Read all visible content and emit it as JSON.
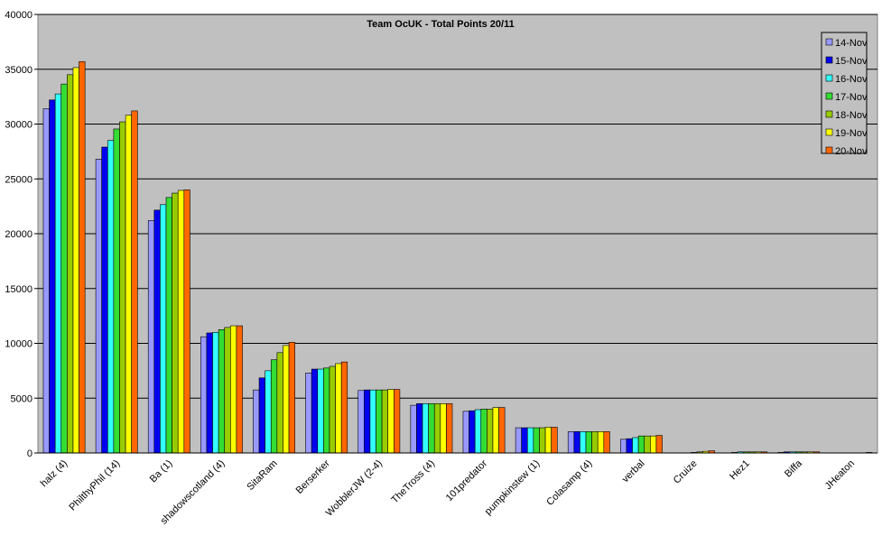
{
  "chart_data": {
    "type": "bar",
    "title": "Team OcUK - Total Points 20/11",
    "categories": [
      "halz (4)",
      "PhilthyPhil (14)",
      "Ba (1)",
      "shadowscotland (4)",
      "SitaRam",
      "Berserker",
      "WobblerJW (2-4)",
      "TheTross (4)",
      "101predator",
      "pumpkinstew (1)",
      "Colasamp (4)",
      "verbal",
      "Cruize",
      "Hez1",
      "Biffa",
      "JHeaton"
    ],
    "series": [
      {
        "name": "14-Nov",
        "color": "#9999ff",
        "values": [
          31400,
          26800,
          21200,
          10600,
          5750,
          7300,
          5700,
          4350,
          3800,
          2300,
          1950,
          1250,
          0,
          0,
          50,
          0
        ]
      },
      {
        "name": "15-Nov",
        "color": "#0000ee",
        "values": [
          32200,
          27900,
          22150,
          10950,
          6850,
          7650,
          5750,
          4500,
          3850,
          2300,
          1950,
          1300,
          0,
          50,
          100,
          0
        ]
      },
      {
        "name": "16-Nov",
        "color": "#33ffff",
        "values": [
          32750,
          28500,
          22650,
          11000,
          7500,
          7650,
          5750,
          4500,
          3950,
          2300,
          1950,
          1400,
          0,
          100,
          100,
          0
        ]
      },
      {
        "name": "17-Nov",
        "color": "#33dd33",
        "values": [
          33650,
          29550,
          23300,
          11250,
          8500,
          7750,
          5750,
          4500,
          4000,
          2300,
          1950,
          1550,
          50,
          100,
          100,
          0
        ]
      },
      {
        "name": "18-Nov",
        "color": "#99cc00",
        "values": [
          34500,
          30200,
          23700,
          11450,
          9150,
          7900,
          5750,
          4500,
          4000,
          2300,
          1950,
          1550,
          100,
          100,
          100,
          0
        ]
      },
      {
        "name": "19-Nov",
        "color": "#ffff00",
        "values": [
          35150,
          30800,
          23950,
          11600,
          9800,
          8150,
          5800,
          4500,
          4150,
          2350,
          1950,
          1550,
          150,
          100,
          100,
          0
        ]
      },
      {
        "name": "20-Nov",
        "color": "#ff6600",
        "values": [
          35700,
          31200,
          24000,
          11600,
          10100,
          8300,
          5800,
          4500,
          4150,
          2350,
          1950,
          1600,
          200,
          100,
          100,
          50
        ]
      }
    ],
    "ylim": [
      0,
      40000
    ],
    "yticks": [
      0,
      5000,
      10000,
      15000,
      20000,
      25000,
      30000,
      35000,
      40000
    ],
    "grid": true,
    "legend": "top-right",
    "plot_background": "#c0c0c0"
  }
}
